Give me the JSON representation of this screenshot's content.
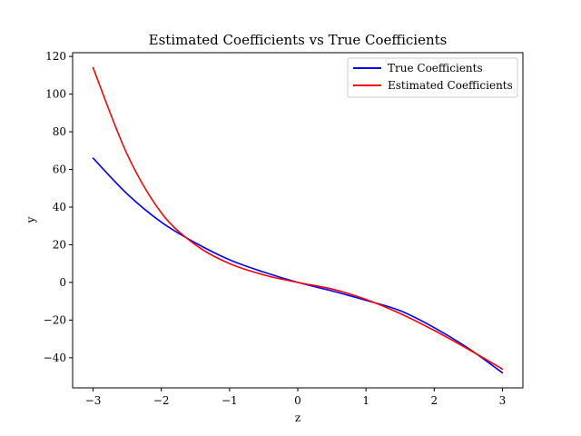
{
  "chart_data": {
    "type": "line",
    "title": "Estimated Coefficients vs True Coefficients",
    "xlabel": "z",
    "ylabel": "y",
    "xlim": [
      -3.3,
      3.3
    ],
    "ylim": [
      -56,
      122
    ],
    "xticks": [
      -3,
      -2,
      -1,
      0,
      1,
      2,
      3
    ],
    "yticks": [
      -40,
      -20,
      0,
      20,
      40,
      60,
      80,
      100,
      120
    ],
    "grid": false,
    "legend_position": "top-right",
    "series": [
      {
        "name": "True Coefficients",
        "color": "#0000ff",
        "x": [
          -3.0,
          -2.5,
          -2.0,
          -1.5,
          -1.0,
          -0.5,
          0.0,
          0.5,
          1.0,
          1.5,
          2.0,
          2.5,
          3.0
        ],
        "y": [
          66,
          47,
          32,
          21,
          12,
          5.5,
          0,
          -4.5,
          -9.5,
          -15,
          -24,
          -35,
          -48
        ]
      },
      {
        "name": "Estimated Coefficients",
        "color": "#ff0000",
        "x": [
          -3.0,
          -2.5,
          -2.0,
          -1.5,
          -1.0,
          -0.5,
          0.0,
          0.5,
          1.0,
          1.5,
          2.0,
          2.5,
          3.0
        ],
        "y": [
          114,
          68,
          37,
          20,
          10,
          4,
          0,
          -3.5,
          -9,
          -16.5,
          -25.5,
          -35.5,
          -46
        ]
      }
    ]
  }
}
